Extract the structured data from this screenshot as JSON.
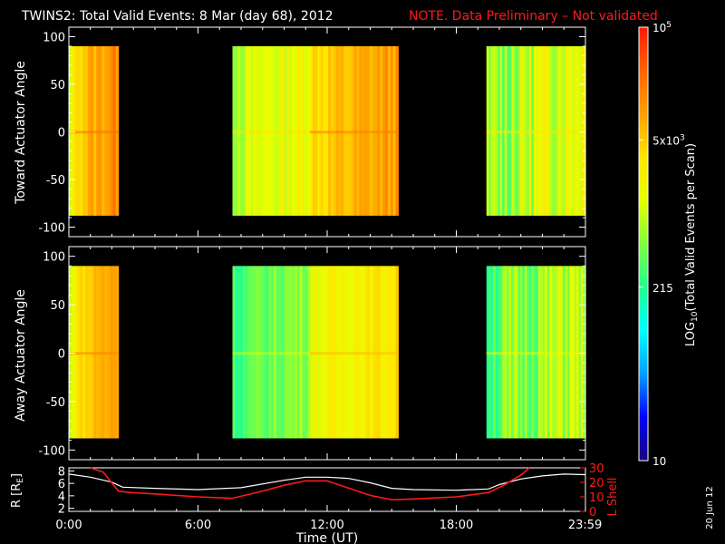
{
  "header": {
    "title": "TWINS2: Total Valid Events:  8 Mar (day  68), 2012",
    "note": "NOTE. Data Preliminary – Not validated"
  },
  "date_stamp": "20 Jun 12",
  "chart_data": [
    {
      "type": "heatmap",
      "name": "toward",
      "ylabel": "Toward Actuator Angle",
      "ylim": [
        -110,
        110
      ],
      "yticks": [
        "100",
        "50",
        "0",
        "-50",
        "-100"
      ],
      "angle_range": [
        -88,
        90
      ],
      "segments": [
        {
          "start_h": 0.0,
          "end_h": 2.3,
          "cols": 18,
          "base": 0.78,
          "drift": 0.06,
          "jitter": 0.05,
          "edge_start": 0.58
        },
        {
          "start_h": 7.6,
          "end_h": 11.2,
          "cols": 30,
          "base": 0.6,
          "drift": 0.04,
          "jitter": 0.06
        },
        {
          "start_h": 11.2,
          "end_h": 15.3,
          "cols": 34,
          "base": 0.76,
          "drift": 0.05,
          "jitter": 0.05
        },
        {
          "start_h": 19.4,
          "end_h": 24.0,
          "cols": 44,
          "base": 0.58,
          "drift": 0.08,
          "jitter": 0.1
        }
      ]
    },
    {
      "type": "heatmap",
      "name": "away",
      "ylabel": "Away Actuator Angle",
      "ylim": [
        -110,
        110
      ],
      "yticks": [
        "100",
        "50",
        "0",
        "-50",
        "-100"
      ],
      "angle_range": [
        -88,
        90
      ],
      "segments": [
        {
          "start_h": 0.0,
          "end_h": 2.3,
          "cols": 18,
          "base": 0.75,
          "drift": 0.07,
          "jitter": 0.05,
          "edge_start": 0.56
        },
        {
          "start_h": 7.6,
          "end_h": 11.2,
          "cols": 30,
          "base": 0.48,
          "drift": 0.05,
          "jitter": 0.05
        },
        {
          "start_h": 11.2,
          "end_h": 15.3,
          "cols": 34,
          "base": 0.66,
          "drift": 0.04,
          "jitter": 0.05
        },
        {
          "start_h": 19.4,
          "end_h": 24.0,
          "cols": 44,
          "base": 0.52,
          "drift": 0.06,
          "jitter": 0.09
        }
      ]
    },
    {
      "type": "line",
      "name": "orbit",
      "ylabel": "R [R",
      "ylabel_sub": "E",
      "ylabel_end": "]",
      "y2label": "L Shell",
      "xlabel": "Time (UT)",
      "xticks": [
        {
          "h": 0,
          "label": "0:00"
        },
        {
          "h": 6,
          "label": "6:00"
        },
        {
          "h": 12,
          "label": "12:00"
        },
        {
          "h": 18,
          "label": "18:00"
        },
        {
          "h": 23.983,
          "label": "23:59"
        }
      ],
      "xlim_h": [
        0,
        24
      ],
      "ylim": [
        1.5,
        8.5
      ],
      "yticks": [
        "8",
        "6",
        "4",
        "2"
      ],
      "y2lim": [
        0,
        30
      ],
      "y2ticks": [
        "30",
        "20",
        "10",
        "0"
      ],
      "series": [
        {
          "axis": "left",
          "color": "#ffffff",
          "x": [
            0,
            1,
            2,
            2.5,
            4,
            6,
            8,
            10,
            11,
            12,
            13,
            14,
            15,
            16,
            18,
            19.5,
            20,
            21,
            22,
            23,
            24
          ],
          "y": [
            7.5,
            7.0,
            6.2,
            5.4,
            5.2,
            5.0,
            5.3,
            6.5,
            7.0,
            7.0,
            6.8,
            6.1,
            5.2,
            5.0,
            4.9,
            5.1,
            5.8,
            6.7,
            7.2,
            7.5,
            7.4
          ]
        },
        {
          "axis": "right",
          "color": "#ff1a1a",
          "x": [
            1.0,
            1.6,
            2.3,
            2.8,
            4.0,
            6.0,
            7.6,
            9.0,
            10.0,
            11.0,
            12.0,
            13.0,
            14.0,
            15.0,
            16.0,
            18.0,
            19.5,
            20.2,
            21.0,
            21.4
          ],
          "y": [
            30,
            27,
            14,
            13,
            12,
            10,
            9,
            14,
            18,
            21,
            21,
            16,
            11,
            8,
            8.5,
            10,
            13,
            18,
            25,
            30
          ]
        }
      ]
    }
  ],
  "colorbar": {
    "label": "LOG",
    "label_sub": "10",
    "label_end": "(Total Valid Events per Scan)",
    "ticks": [
      {
        "frac": 1.0,
        "base": "10",
        "exp": "5"
      },
      {
        "frac": 0.74,
        "base": "5x10",
        "exp": "3"
      },
      {
        "frac": 0.4,
        "base": "215",
        "exp": ""
      },
      {
        "frac": 0.0,
        "base": "10",
        "exp": ""
      }
    ],
    "stops": [
      "#1a0080",
      "#0000ff",
      "#00a0ff",
      "#00ffff",
      "#20ff90",
      "#80ff40",
      "#e8ff00",
      "#ffe600",
      "#ffa000",
      "#ff6400",
      "#ff1a00"
    ]
  }
}
